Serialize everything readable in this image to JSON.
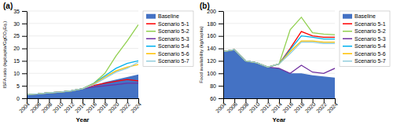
{
  "chart_data": [
    {
      "type": "line",
      "title": "(a)",
      "xlabel": "Year",
      "ylabel": "ISFA ratio (kg/capita/GgCO₂Eq.)",
      "x": [
        2004,
        2006,
        2008,
        2010,
        2012,
        2014,
        2016,
        2018,
        2020,
        2022,
        2024
      ],
      "xlim": [
        2004,
        2024
      ],
      "xticks": [
        2004,
        2006,
        2008,
        2010,
        2012,
        2014,
        2016,
        2018,
        2020,
        2022,
        2024
      ],
      "ylim": [
        0,
        35
      ],
      "yticks": [
        0,
        5,
        10,
        15,
        20,
        25,
        30,
        35
      ],
      "grid": true,
      "legend": "right",
      "series": [
        {
          "name": "Baseline",
          "type": "area",
          "color": "#4472C4",
          "values": [
            1.5,
            1.8,
            2.2,
            2.5,
            3.0,
            3.8,
            5.0,
            6.5,
            7.5,
            8.5,
            9.5
          ]
        },
        {
          "name": "Scenario 5-1",
          "type": "line",
          "color": "#FF0000",
          "values": [
            1.5,
            1.8,
            2.2,
            2.5,
            3.0,
            3.8,
            5.2,
            6.0,
            6.8,
            7.5,
            7.0
          ]
        },
        {
          "name": "Scenario 5-2",
          "type": "line",
          "color": "#92D050",
          "values": [
            1.5,
            1.8,
            2.2,
            2.5,
            3.0,
            3.8,
            6.0,
            10.0,
            17.0,
            23.0,
            29.5
          ]
        },
        {
          "name": "Scenario 5-3",
          "type": "line",
          "color": "#7030A0",
          "values": [
            1.5,
            1.8,
            2.2,
            2.5,
            3.0,
            3.8,
            4.5,
            5.0,
            5.5,
            6.0,
            6.0
          ]
        },
        {
          "name": "Scenario 5-4",
          "type": "line",
          "color": "#00B0F0",
          "values": [
            1.5,
            1.8,
            2.2,
            2.5,
            3.0,
            3.8,
            6.0,
            9.0,
            12.0,
            14.0,
            15.0
          ]
        },
        {
          "name": "Scenario 5-6",
          "type": "line",
          "color": "#FFC000",
          "values": [
            1.5,
            1.8,
            2.2,
            2.5,
            3.0,
            3.8,
            5.8,
            8.5,
            11.0,
            12.5,
            13.5
          ]
        },
        {
          "name": "Scenario 5-7",
          "type": "line",
          "color": "#92CDDC",
          "values": [
            1.5,
            1.8,
            2.2,
            2.5,
            3.0,
            3.8,
            5.5,
            8.0,
            10.5,
            12.0,
            14.5
          ]
        }
      ]
    },
    {
      "type": "line",
      "title": "(b)",
      "xlabel": "Year",
      "ylabel": "Food availability (kg/capita)",
      "x": [
        2004,
        2006,
        2008,
        2010,
        2012,
        2014,
        2016,
        2018,
        2020,
        2022,
        2024
      ],
      "xlim": [
        2004,
        2024
      ],
      "xticks": [
        2004,
        2006,
        2008,
        2010,
        2012,
        2014,
        2016,
        2018,
        2020,
        2022,
        2024
      ],
      "ylim": [
        60,
        200
      ],
      "yticks": [
        60,
        80,
        100,
        120,
        140,
        160,
        180,
        200
      ],
      "grid": true,
      "legend": "right",
      "series": [
        {
          "name": "Baseline",
          "type": "area",
          "color": "#4472C4",
          "values": [
            135,
            138,
            120,
            117,
            110,
            108,
            100,
            100,
            97,
            95,
            93
          ]
        },
        {
          "name": "Scenario 5-1",
          "type": "line",
          "color": "#FF0000",
          "values": [
            135,
            138,
            120,
            117,
            110,
            115,
            140,
            167,
            160,
            158,
            158
          ]
        },
        {
          "name": "Scenario 5-2",
          "type": "line",
          "color": "#92D050",
          "values": [
            135,
            138,
            120,
            117,
            110,
            115,
            170,
            190,
            165,
            163,
            162
          ]
        },
        {
          "name": "Scenario 5-3",
          "type": "line",
          "color": "#7030A0",
          "values": [
            135,
            138,
            120,
            117,
            110,
            108,
            100,
            113,
            102,
            100,
            108
          ]
        },
        {
          "name": "Scenario 5-4",
          "type": "line",
          "color": "#00B0F0",
          "values": [
            135,
            138,
            120,
            117,
            110,
            115,
            138,
            160,
            158,
            155,
            155
          ]
        },
        {
          "name": "Scenario 5-6",
          "type": "line",
          "color": "#FFC000",
          "values": [
            135,
            138,
            120,
            117,
            110,
            115,
            135,
            152,
            152,
            150,
            150
          ]
        },
        {
          "name": "Scenario 5-7",
          "type": "line",
          "color": "#92CDDC",
          "values": [
            135,
            138,
            120,
            117,
            110,
            115,
            132,
            150,
            150,
            148,
            148
          ]
        }
      ]
    }
  ]
}
